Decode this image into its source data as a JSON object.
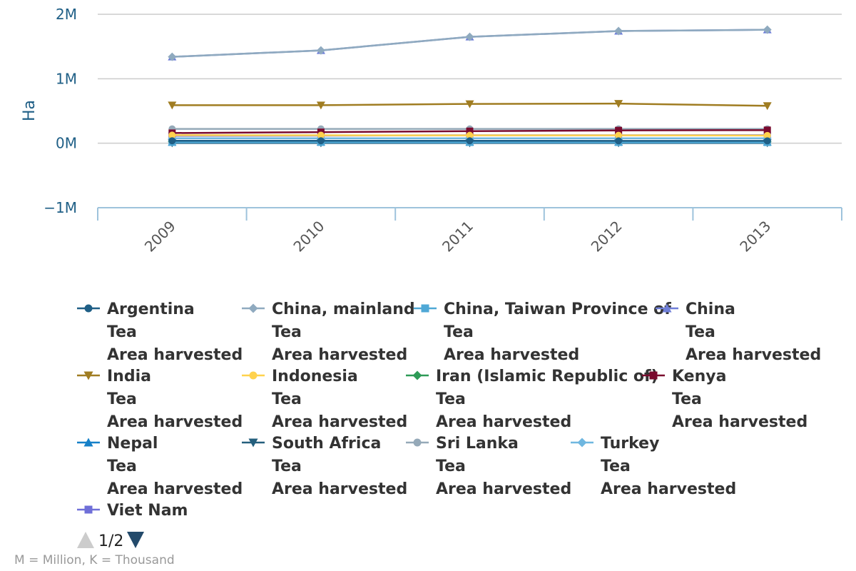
{
  "chart_data": {
    "type": "line",
    "title": "",
    "xlabel": "",
    "ylabel": "Ha",
    "x": [
      "2009",
      "2010",
      "2011",
      "2012",
      "2013"
    ],
    "ylim": [
      -1000000,
      2000000
    ],
    "yticks": [
      {
        "value": 2000000,
        "label": "2M"
      },
      {
        "value": 1000000,
        "label": "1M"
      },
      {
        "value": 0,
        "label": "0M"
      },
      {
        "value": -1000000,
        "label": "−1M"
      }
    ],
    "grid": true,
    "legend_position": "bottom",
    "series": [
      {
        "name": "Argentina",
        "lines": [
          "Argentina",
          "Tea",
          "Area harvested"
        ],
        "color": "#1f5f86",
        "marker": "circle",
        "values": [
          38000,
          38000,
          38000,
          37000,
          37000
        ]
      },
      {
        "name": "China, mainland",
        "lines": [
          "China, mainland",
          "Tea",
          "Area harvested"
        ],
        "color": "#8faabf",
        "marker": "diamond",
        "values": [
          1340000,
          1440000,
          1650000,
          1740000,
          1760000
        ]
      },
      {
        "name": "China, Taiwan Province of",
        "lines": [
          "China, Taiwan Province of",
          "Tea",
          "Area harvested"
        ],
        "color": "#4fa8d6",
        "marker": "square",
        "values": [
          14000,
          14000,
          13000,
          13000,
          12000
        ]
      },
      {
        "name": "China",
        "lines": [
          "China",
          "Tea",
          "Area harvested"
        ],
        "color": "#6f7fd8",
        "marker": "triangle",
        "values": [
          1340000,
          1440000,
          1650000,
          1740000,
          1760000
        ]
      },
      {
        "name": "India",
        "lines": [
          "India",
          "Tea",
          "Area harvested"
        ],
        "color": "#a07d22",
        "marker": "triangle-down",
        "values": [
          590000,
          590000,
          610000,
          615000,
          580000
        ]
      },
      {
        "name": "Indonesia",
        "lines": [
          "Indonesia",
          "Tea",
          "Area harvested"
        ],
        "color": "#ffd24d",
        "marker": "circle",
        "values": [
          125000,
          123000,
          122000,
          122000,
          120000
        ]
      },
      {
        "name": "Iran (Islamic Republic of)",
        "lines": [
          "Iran (Islamic Republic of)",
          "Tea",
          "Area harvested"
        ],
        "color": "#2e9b57",
        "marker": "diamond",
        "values": [
          24000,
          24000,
          22000,
          22000,
          21000
        ]
      },
      {
        "name": "Kenya",
        "lines": [
          "Kenya",
          "Tea",
          "Area harvested"
        ],
        "color": "#7a0a2e",
        "marker": "square",
        "values": [
          158000,
          172000,
          187000,
          199000,
          203000
        ]
      },
      {
        "name": "Nepal",
        "lines": [
          "Nepal",
          "Tea",
          "Area harvested"
        ],
        "color": "#1680c8",
        "marker": "triangle",
        "values": [
          16000,
          16500,
          17000,
          17500,
          17500
        ]
      },
      {
        "name": "South Africa",
        "lines": [
          "South Africa",
          "Tea",
          "Area harvested"
        ],
        "color": "#245f7d",
        "marker": "triangle-down",
        "values": [
          3000,
          3000,
          3000,
          3000,
          3000
        ]
      },
      {
        "name": "Sri Lanka",
        "lines": [
          "Sri Lanka",
          "Tea",
          "Area harvested"
        ],
        "color": "#95a9b8",
        "marker": "circle",
        "values": [
          222000,
          222000,
          222000,
          222000,
          222000
        ]
      },
      {
        "name": "Turkey",
        "lines": [
          "Turkey",
          "Tea",
          "Area harvested"
        ],
        "color": "#6fb7e0",
        "marker": "diamond",
        "values": [
          76000,
          76000,
          76000,
          76000,
          77000
        ]
      },
      {
        "name": "Viet Nam",
        "lines": [
          "Viet Nam"
        ],
        "color": "#6f6fd8",
        "marker": "square",
        "values": [
          115000,
          118000,
          124000,
          124000,
          125000
        ]
      }
    ]
  },
  "legend_nav": {
    "page": "1/2"
  },
  "footnote": "M = Million, K = Thousand"
}
